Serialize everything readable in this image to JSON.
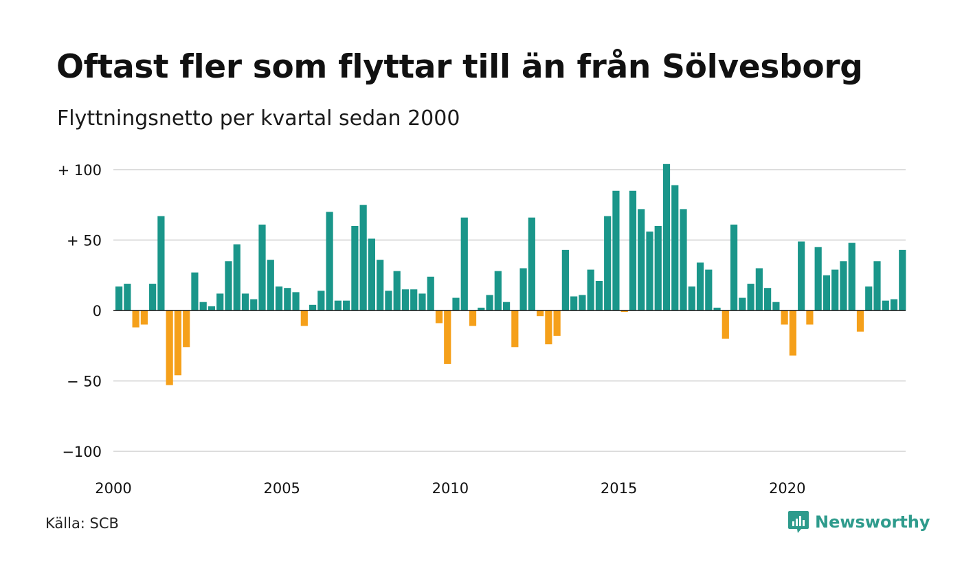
{
  "title": "Oftast fler som flyttar till än från Sölvesborg",
  "subtitle": "Flyttningsnetto per kvartal sedan 2000",
  "source": "Källa: SCB",
  "brand": "Newsworthy",
  "colors": {
    "positive": "#1a968a",
    "negative": "#f5a01a",
    "grid": "#dddddd",
    "brand": "#2e9b8c"
  },
  "chart_data": {
    "type": "bar",
    "title": "Oftast fler som flyttar till än från Sölvesborg",
    "subtitle": "Flyttningsnetto per kvartal sedan 2000",
    "ylim": [
      -100,
      100
    ],
    "y_ticks": [
      {
        "value": 100,
        "label": "+ 100"
      },
      {
        "value": 50,
        "label": "+  50"
      },
      {
        "value": 0,
        "label": "0"
      },
      {
        "value": -50,
        "label": "− 50"
      },
      {
        "value": -100,
        "label": "−100"
      }
    ],
    "x_ticks": [
      "2000",
      "2005",
      "2010",
      "2015",
      "2020"
    ],
    "grid": true,
    "start": "2000 Q1",
    "frequency": "quarter",
    "values": [
      17,
      19,
      -12,
      -10,
      19,
      67,
      -53,
      -46,
      -26,
      27,
      6,
      3,
      12,
      35,
      47,
      12,
      8,
      61,
      36,
      17,
      16,
      13,
      -11,
      4,
      14,
      70,
      7,
      7,
      60,
      75,
      51,
      36,
      14,
      28,
      15,
      15,
      12,
      24,
      -9,
      -38,
      9,
      66,
      -11,
      2,
      11,
      28,
      6,
      -26,
      30,
      66,
      -4,
      -24,
      -18,
      43,
      10,
      11,
      29,
      21,
      67,
      85,
      -1,
      85,
      72,
      56,
      60,
      104,
      89,
      72,
      17,
      34,
      29,
      2,
      -20,
      61,
      9,
      19,
      30,
      16,
      6,
      -10,
      -32,
      49,
      -10,
      45,
      25,
      29,
      35,
      48,
      -15,
      17,
      35,
      7,
      8,
      43
    ]
  }
}
